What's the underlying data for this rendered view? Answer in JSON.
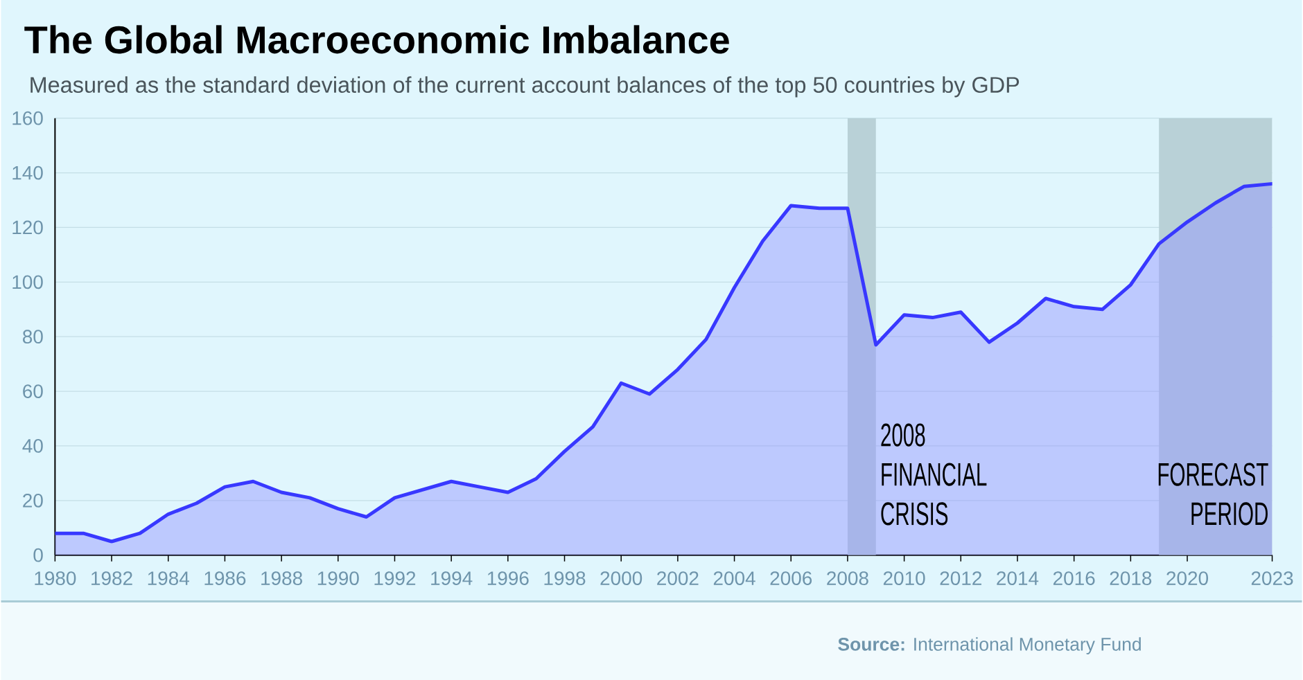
{
  "chart_data": {
    "type": "area",
    "title": "The Global Macroeconomic Imbalance",
    "subtitle": "Measured as the standard deviation of the current account balances of the top 50 countries by GDP",
    "x": [
      1980,
      1981,
      1982,
      1983,
      1984,
      1985,
      1986,
      1987,
      1988,
      1989,
      1990,
      1991,
      1992,
      1993,
      1994,
      1995,
      1996,
      1997,
      1998,
      1999,
      2000,
      2001,
      2002,
      2003,
      2004,
      2005,
      2006,
      2007,
      2008,
      2009,
      2010,
      2011,
      2012,
      2013,
      2014,
      2015,
      2016,
      2017,
      2018,
      2019,
      2020,
      2021,
      2022,
      2023
    ],
    "values": [
      8,
      8,
      5,
      8,
      15,
      19,
      25,
      27,
      23,
      21,
      17,
      14,
      21,
      24,
      27,
      25,
      23,
      28,
      38,
      47,
      63,
      59,
      68,
      79,
      98,
      115,
      128,
      127,
      127,
      77,
      88,
      87,
      89,
      78,
      85,
      94,
      91,
      90,
      99,
      114,
      122,
      129,
      135,
      136
    ],
    "color": "#3838ff",
    "xlim": [
      1980,
      2023
    ],
    "xticks": [
      1980,
      1982,
      1984,
      1986,
      1988,
      1990,
      1992,
      1994,
      1996,
      1998,
      2000,
      2002,
      2004,
      2006,
      2008,
      2010,
      2012,
      2014,
      2016,
      2018,
      2020,
      2023
    ],
    "ylim": [
      0,
      160
    ],
    "yticks": [
      0,
      20,
      40,
      60,
      80,
      100,
      120,
      140,
      160
    ],
    "grid": "y",
    "bands": [
      {
        "axis": "x",
        "from": 2008,
        "to": 2009,
        "label": "2008 FINANCIAL CRISIS",
        "color": "#b9d1d7"
      },
      {
        "axis": "x",
        "from": 2019,
        "to": 2023,
        "label": "FORECAST PERIOD",
        "color": "#b9d1d7"
      }
    ],
    "annotations": [
      "**Source:** International Monetary Fund"
    ]
  }
}
